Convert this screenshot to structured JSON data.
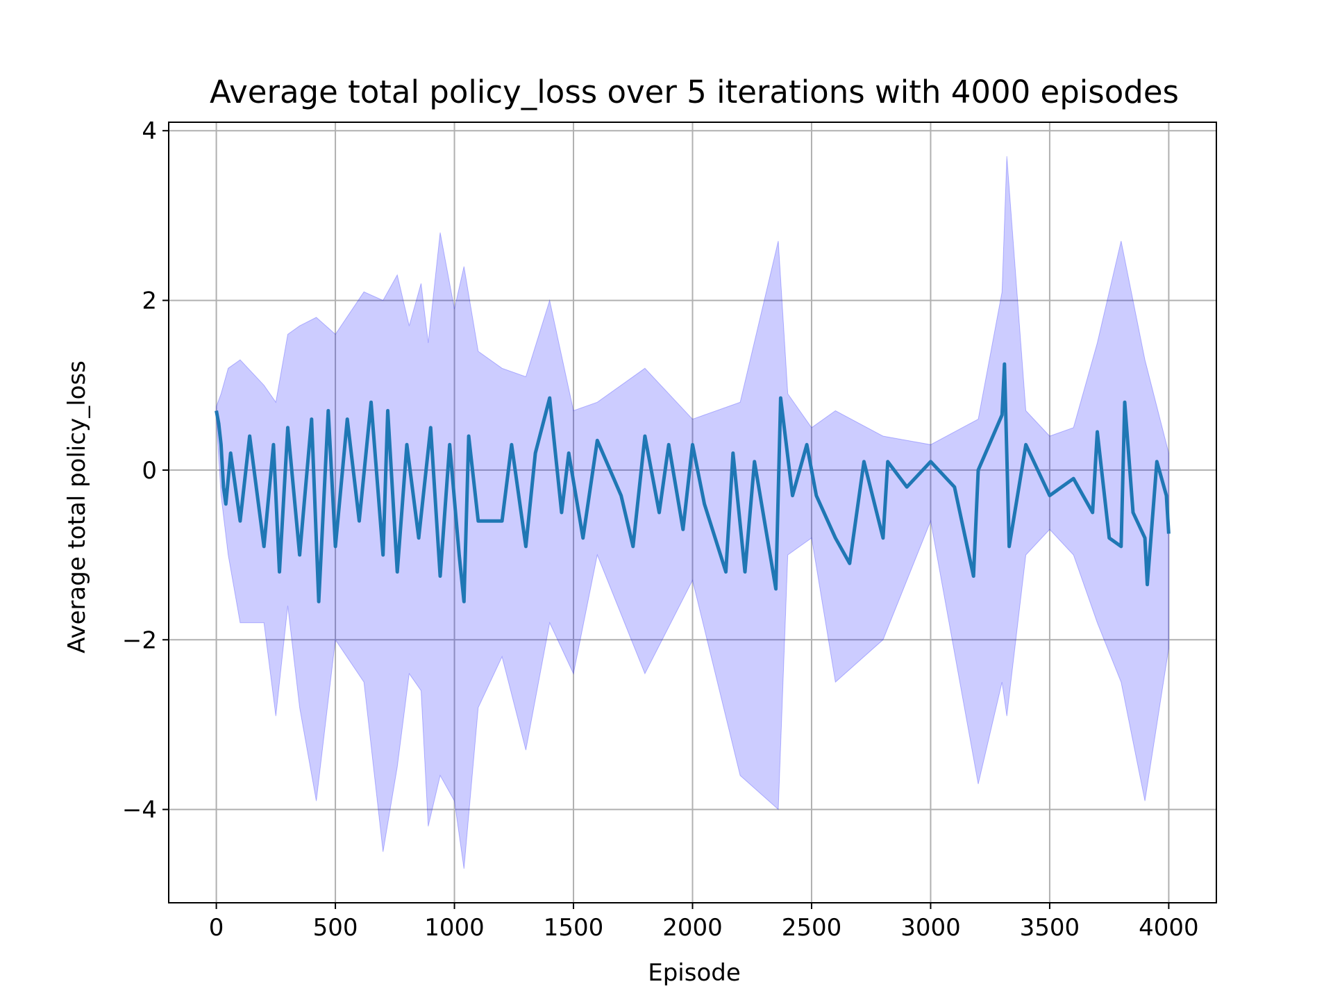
{
  "chart_data": {
    "type": "line",
    "title": "Average total policy_loss over 5 iterations with 4000 episodes",
    "xlabel": "Episode",
    "ylabel": "Average total policy_loss",
    "xlim": [
      -200,
      4200
    ],
    "ylim": [
      -5.1,
      4.1
    ],
    "x_ticks": [
      0,
      500,
      1000,
      1500,
      2000,
      2500,
      3000,
      3500,
      4000
    ],
    "x_tick_labels": [
      "0",
      "500",
      "1000",
      "1500",
      "2000",
      "2500",
      "3000",
      "3500",
      "4000"
    ],
    "y_ticks": [
      -4,
      -2,
      0,
      2,
      4
    ],
    "y_tick_labels": [
      "−4",
      "−2",
      "0",
      "2",
      "4"
    ],
    "grid": true,
    "legend": "none",
    "colors": {
      "mean": "#1f77b4",
      "band": "#0000ff",
      "grid": "#b0b0b0",
      "frame": "#000000"
    },
    "band_opacity": 0.2,
    "series": [
      {
        "role": "mean",
        "x": [
          0,
          10,
          20,
          30,
          40,
          60,
          100,
          140,
          200,
          240,
          265,
          300,
          350,
          400,
          430,
          470,
          500,
          550,
          600,
          650,
          700,
          720,
          760,
          800,
          850,
          900,
          940,
          980,
          1020,
          1040,
          1060,
          1100,
          1200,
          1240,
          1300,
          1340,
          1400,
          1450,
          1480,
          1540,
          1600,
          1700,
          1750,
          1800,
          1860,
          1900,
          1960,
          2000,
          2050,
          2140,
          2170,
          2220,
          2260,
          2350,
          2370,
          2420,
          2480,
          2520,
          2600,
          2660,
          2720,
          2800,
          2820,
          2900,
          3000,
          3100,
          3180,
          3200,
          3300,
          3310,
          3330,
          3400,
          3500,
          3600,
          3680,
          3700,
          3750,
          3800,
          3815,
          3850,
          3900,
          3910,
          3950,
          3990,
          4000
        ],
        "y": [
          0.7,
          0.55,
          0.3,
          -0.2,
          -0.4,
          0.2,
          -0.6,
          0.4,
          -0.9,
          0.3,
          -1.2,
          0.5,
          -1.0,
          0.6,
          -1.55,
          0.7,
          -0.9,
          0.6,
          -0.6,
          0.8,
          -1.0,
          0.7,
          -1.2,
          0.3,
          -0.8,
          0.5,
          -1.25,
          0.3,
          -1.0,
          -1.55,
          0.4,
          -0.6,
          -0.6,
          0.3,
          -0.9,
          0.2,
          0.85,
          -0.5,
          0.2,
          -0.8,
          0.35,
          -0.3,
          -0.9,
          0.4,
          -0.5,
          0.3,
          -0.7,
          0.3,
          -0.4,
          -1.2,
          0.2,
          -1.2,
          0.1,
          -1.4,
          0.85,
          -0.3,
          0.3,
          -0.3,
          -0.8,
          -1.1,
          0.1,
          -0.8,
          0.1,
          -0.2,
          0.1,
          -0.2,
          -1.25,
          0.0,
          0.65,
          1.25,
          -0.9,
          0.3,
          -0.3,
          -0.1,
          -0.5,
          0.45,
          -0.8,
          -0.9,
          0.8,
          -0.5,
          -0.8,
          -1.35,
          0.1,
          -0.3,
          -0.75
        ]
      }
    ],
    "band": {
      "x": [
        0,
        20,
        50,
        100,
        200,
        250,
        300,
        350,
        420,
        500,
        620,
        700,
        760,
        810,
        860,
        890,
        940,
        1000,
        1040,
        1100,
        1200,
        1300,
        1400,
        1500,
        1600,
        1800,
        2000,
        2200,
        2360,
        2400,
        2500,
        2600,
        2800,
        3000,
        3200,
        3300,
        3320,
        3400,
        3500,
        3600,
        3700,
        3800,
        3900,
        4000
      ],
      "lower": [
        0.6,
        -0.3,
        -1.0,
        -1.8,
        -1.8,
        -2.9,
        -1.6,
        -2.8,
        -3.9,
        -2.0,
        -2.5,
        -4.5,
        -3.5,
        -2.4,
        -2.6,
        -4.2,
        -3.6,
        -3.9,
        -4.7,
        -2.8,
        -2.2,
        -3.3,
        -1.8,
        -2.4,
        -1.0,
        -2.4,
        -1.3,
        -3.6,
        -4.0,
        -1.0,
        -0.8,
        -2.5,
        -2.0,
        -0.6,
        -3.7,
        -2.5,
        -2.9,
        -1.0,
        -0.7,
        -1.0,
        -1.8,
        -2.5,
        -3.9,
        -2.1
      ],
      "upper": [
        0.75,
        0.9,
        1.2,
        1.3,
        1.0,
        0.8,
        1.6,
        1.7,
        1.8,
        1.6,
        2.1,
        2.0,
        2.3,
        1.7,
        2.2,
        1.5,
        2.8,
        1.9,
        2.4,
        1.4,
        1.2,
        1.1,
        2.0,
        0.7,
        0.8,
        1.2,
        0.6,
        0.8,
        2.7,
        0.9,
        0.5,
        0.7,
        0.4,
        0.3,
        0.6,
        2.1,
        3.7,
        0.7,
        0.4,
        0.5,
        1.5,
        2.7,
        1.3,
        0.2
      ]
    }
  }
}
